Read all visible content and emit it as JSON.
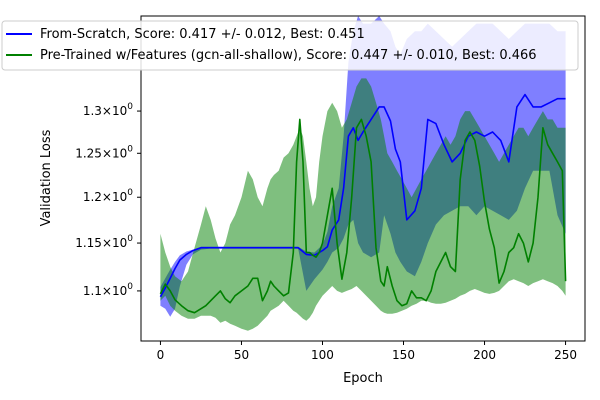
{
  "chart_data": {
    "type": "line",
    "xlabel": "Epoch",
    "ylabel": "Validation Loss",
    "title": "",
    "y_scale": "log",
    "xlim": [
      -12,
      262
    ],
    "ylim": [
      1.05,
      1.42
    ],
    "x_ticks": [
      0,
      50,
      100,
      150,
      200,
      250
    ],
    "y_ticks": [
      {
        "value": 1.1,
        "mant": "1.1",
        "exp": "0"
      },
      {
        "value": 1.15,
        "mant": "1.15",
        "exp": "0"
      },
      {
        "value": 1.2,
        "mant": "1.2",
        "exp": "0"
      },
      {
        "value": 1.25,
        "mant": "1.25",
        "exp": "0"
      },
      {
        "value": 1.3,
        "mant": "1.3",
        "exp": "0"
      }
    ],
    "y_tick_sep": "×10",
    "legend_position": "upper-left (extends beyond axes)",
    "grid": false,
    "series": [
      {
        "name": "From-Scratch, Score: 0.417 +/- 0.012,  Best: 0.451",
        "color": "#0000ff",
        "fill_color": "#0000ff",
        "fill_opacity": 0.5,
        "x": [
          0,
          3,
          6,
          9,
          12,
          16,
          20,
          25,
          30,
          40,
          50,
          60,
          70,
          80,
          85,
          90,
          95,
          100,
          103,
          106,
          110,
          113,
          116,
          119,
          122,
          125,
          130,
          135,
          138,
          142,
          145,
          148,
          152,
          157,
          161,
          165,
          170,
          175,
          180,
          185,
          190,
          195,
          200,
          205,
          210,
          215,
          220,
          225,
          230,
          235,
          240,
          245,
          250
        ],
        "mean": [
          1.094,
          1.103,
          1.113,
          1.123,
          1.132,
          1.138,
          1.142,
          1.145,
          1.145,
          1.145,
          1.145,
          1.145,
          1.145,
          1.145,
          1.145,
          1.138,
          1.137,
          1.142,
          1.146,
          1.164,
          1.175,
          1.21,
          1.27,
          1.28,
          1.265,
          1.275,
          1.29,
          1.305,
          1.305,
          1.288,
          1.255,
          1.24,
          1.175,
          1.185,
          1.21,
          1.29,
          1.285,
          1.26,
          1.24,
          1.25,
          1.27,
          1.275,
          1.27,
          1.275,
          1.265,
          1.24,
          1.305,
          1.32,
          1.305,
          1.305,
          1.31,
          1.315,
          1.315
        ],
        "upper": [
          1.104,
          1.113,
          1.122,
          1.13,
          1.137,
          1.141,
          1.143,
          1.146,
          1.146,
          1.146,
          1.146,
          1.146,
          1.146,
          1.146,
          1.146,
          1.141,
          1.14,
          1.148,
          1.162,
          1.19,
          1.21,
          1.27,
          1.36,
          1.4,
          1.42,
          1.41,
          1.41,
          1.42,
          1.41,
          1.4,
          1.38,
          1.37,
          1.39,
          1.4,
          1.4,
          1.41,
          1.4,
          1.39,
          1.38,
          1.39,
          1.4,
          1.41,
          1.41,
          1.41,
          1.4,
          1.39,
          1.4,
          1.41,
          1.41,
          1.41,
          1.41,
          1.4,
          1.4
        ],
        "lower": [
          1.085,
          1.082,
          1.074,
          1.082,
          1.105,
          1.127,
          1.138,
          1.143,
          1.144,
          1.144,
          1.144,
          1.144,
          1.144,
          1.144,
          1.144,
          1.1,
          1.112,
          1.122,
          1.13,
          1.14,
          1.145,
          1.155,
          1.17,
          1.175,
          1.15,
          1.14,
          1.135,
          1.14,
          1.18,
          1.16,
          1.14,
          1.13,
          1.12,
          1.115,
          1.13,
          1.15,
          1.17,
          1.18,
          1.185,
          1.19,
          1.19,
          1.18,
          1.19,
          1.185,
          1.18,
          1.175,
          1.185,
          1.21,
          1.23,
          1.23,
          1.23,
          1.18,
          1.16
        ]
      },
      {
        "name": "Pre-Trained w/Features (gcn-all-shallow), Score: 0.447 +/- 0.010,  Best: 0.466",
        "color": "#008000",
        "fill_color": "#008000",
        "fill_opacity": 0.5,
        "x": [
          0,
          3,
          6,
          9,
          13,
          17,
          21,
          25,
          28,
          31,
          34,
          37,
          40,
          43,
          46,
          50,
          54,
          57,
          60,
          63,
          66,
          68,
          70,
          73,
          76,
          79,
          82,
          84,
          86,
          88,
          90,
          92,
          94,
          96,
          98,
          100,
          103,
          106,
          109,
          112,
          115,
          118,
          121,
          124,
          127,
          130,
          133,
          136,
          138,
          140,
          143,
          146,
          149,
          152,
          155,
          158,
          161,
          164,
          167,
          170,
          173,
          176,
          179,
          182,
          185,
          188,
          191,
          194,
          197,
          200,
          203,
          206,
          209,
          212,
          215,
          218,
          221,
          224,
          227,
          230,
          233,
          236,
          239,
          242,
          245,
          248,
          250
        ],
        "mean": [
          1.097,
          1.107,
          1.1,
          1.091,
          1.085,
          1.08,
          1.078,
          1.082,
          1.085,
          1.09,
          1.095,
          1.1,
          1.092,
          1.088,
          1.095,
          1.1,
          1.105,
          1.113,
          1.113,
          1.09,
          1.1,
          1.11,
          1.105,
          1.1,
          1.095,
          1.098,
          1.14,
          1.24,
          1.29,
          1.24,
          1.14,
          1.14,
          1.137,
          1.135,
          1.14,
          1.15,
          1.18,
          1.21,
          1.15,
          1.112,
          1.14,
          1.2,
          1.28,
          1.29,
          1.27,
          1.24,
          1.145,
          1.11,
          1.105,
          1.125,
          1.105,
          1.09,
          1.085,
          1.087,
          1.1,
          1.093,
          1.093,
          1.09,
          1.1,
          1.12,
          1.13,
          1.14,
          1.125,
          1.12,
          1.22,
          1.265,
          1.275,
          1.265,
          1.235,
          1.195,
          1.165,
          1.145,
          1.108,
          1.12,
          1.14,
          1.145,
          1.16,
          1.15,
          1.13,
          1.15,
          1.2,
          1.28,
          1.26,
          1.25,
          1.24,
          1.23,
          1.11
        ],
        "upper": [
          1.16,
          1.14,
          1.125,
          1.115,
          1.11,
          1.12,
          1.145,
          1.17,
          1.19,
          1.175,
          1.155,
          1.14,
          1.15,
          1.17,
          1.18,
          1.2,
          1.23,
          1.22,
          1.2,
          1.19,
          1.21,
          1.22,
          1.225,
          1.23,
          1.245,
          1.25,
          1.26,
          1.27,
          1.28,
          1.27,
          1.24,
          1.21,
          1.19,
          1.2,
          1.24,
          1.27,
          1.3,
          1.31,
          1.3,
          1.28,
          1.29,
          1.31,
          1.33,
          1.34,
          1.34,
          1.33,
          1.31,
          1.29,
          1.27,
          1.25,
          1.24,
          1.23,
          1.22,
          1.21,
          1.2,
          1.21,
          1.22,
          1.23,
          1.24,
          1.25,
          1.26,
          1.27,
          1.26,
          1.27,
          1.29,
          1.3,
          1.3,
          1.29,
          1.28,
          1.27,
          1.26,
          1.25,
          1.24,
          1.25,
          1.26,
          1.27,
          1.28,
          1.28,
          1.27,
          1.28,
          1.29,
          1.3,
          1.29,
          1.29,
          1.28,
          1.28,
          1.28
        ],
        "lower": [
          1.09,
          1.095,
          1.085,
          1.08,
          1.075,
          1.072,
          1.072,
          1.075,
          1.075,
          1.075,
          1.073,
          1.068,
          1.07,
          1.067,
          1.065,
          1.062,
          1.06,
          1.062,
          1.065,
          1.07,
          1.075,
          1.08,
          1.082,
          1.085,
          1.09,
          1.085,
          1.08,
          1.078,
          1.075,
          1.072,
          1.07,
          1.073,
          1.078,
          1.085,
          1.09,
          1.095,
          1.1,
          1.105,
          1.1,
          1.098,
          1.1,
          1.102,
          1.105,
          1.1,
          1.095,
          1.09,
          1.085,
          1.08,
          1.078,
          1.077,
          1.077,
          1.078,
          1.08,
          1.082,
          1.085,
          1.087,
          1.09,
          1.09,
          1.088,
          1.087,
          1.087,
          1.088,
          1.09,
          1.092,
          1.095,
          1.097,
          1.1,
          1.102,
          1.1,
          1.098,
          1.097,
          1.098,
          1.1,
          1.105,
          1.11,
          1.112,
          1.11,
          1.108,
          1.105,
          1.108,
          1.11,
          1.112,
          1.11,
          1.108,
          1.105,
          1.1,
          1.095
        ]
      }
    ]
  }
}
